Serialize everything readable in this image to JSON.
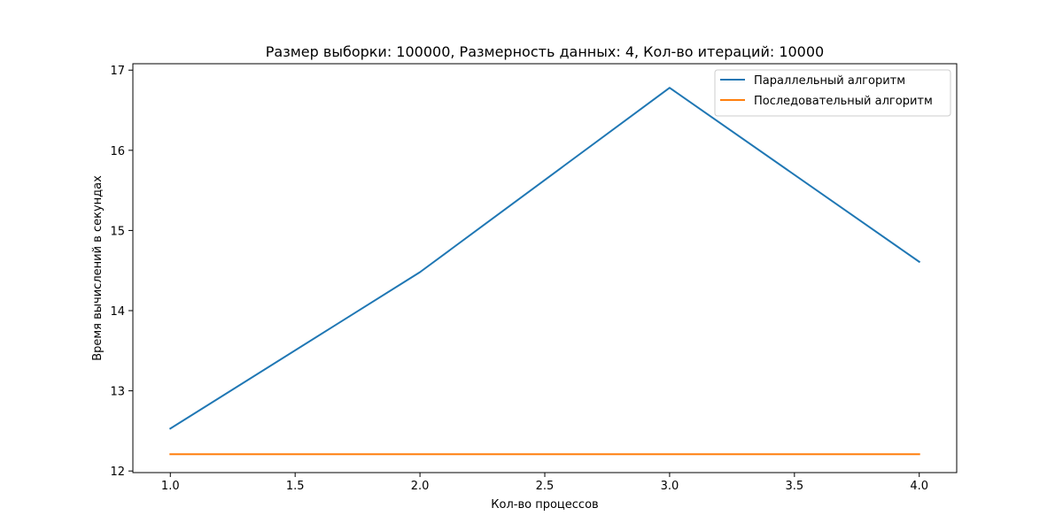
{
  "chart_data": {
    "type": "line",
    "title": "Размер выборки: 100000, Размерность данных: 4, Кол-во итераций: 10000",
    "xlabel": "Кол-во процессов",
    "ylabel": "Время вычислений в секундах",
    "x": [
      1,
      2,
      3,
      4
    ],
    "xlim": [
      0.85,
      4.15
    ],
    "ylim": [
      11.98,
      17.08
    ],
    "xticks": [
      1.0,
      1.5,
      2.0,
      2.5,
      3.0,
      3.5,
      4.0
    ],
    "xtick_labels": [
      "1.0",
      "1.5",
      "2.0",
      "2.5",
      "3.0",
      "3.5",
      "4.0"
    ],
    "yticks": [
      12,
      13,
      14,
      15,
      16,
      17
    ],
    "ytick_labels": [
      "12",
      "13",
      "14",
      "15",
      "16",
      "17"
    ],
    "grid": false,
    "legend_position": "top-right",
    "series": [
      {
        "name": "Параллельный алгоритм",
        "color": "#1f77b4",
        "values": [
          12.53,
          14.48,
          16.78,
          14.61
        ]
      },
      {
        "name": "Последовательный алгоритм",
        "color": "#ff7f0e",
        "values": [
          12.21,
          12.21,
          12.21,
          12.21
        ]
      }
    ]
  }
}
